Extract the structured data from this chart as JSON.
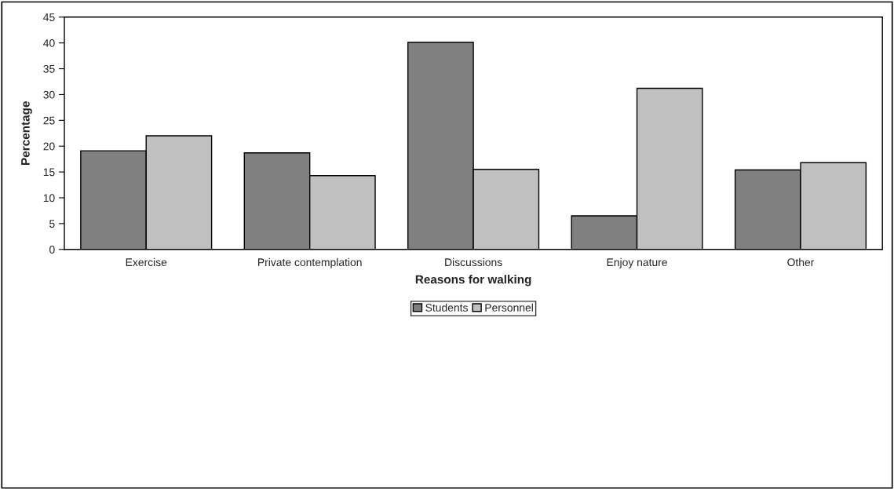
{
  "chart_data": {
    "type": "bar",
    "xlabel": "Reasons for walking",
    "ylabel": "Percentage",
    "categories": [
      "Exercise",
      "Private contemplation",
      "Discussions",
      "Enjoy nature",
      "Other"
    ],
    "series": [
      {
        "name": "Students",
        "color": "#808080",
        "values": [
          19.1,
          18.7,
          40.1,
          6.5,
          15.4
        ]
      },
      {
        "name": "Personnel",
        "color": "#c0c0c0",
        "values": [
          22.0,
          14.3,
          15.5,
          31.2,
          16.8
        ]
      }
    ],
    "ylim": [
      0,
      45
    ],
    "yticks": [
      0,
      5,
      10,
      15,
      20,
      25,
      30,
      35,
      40,
      45
    ],
    "grid": false,
    "legend": "bottom"
  }
}
